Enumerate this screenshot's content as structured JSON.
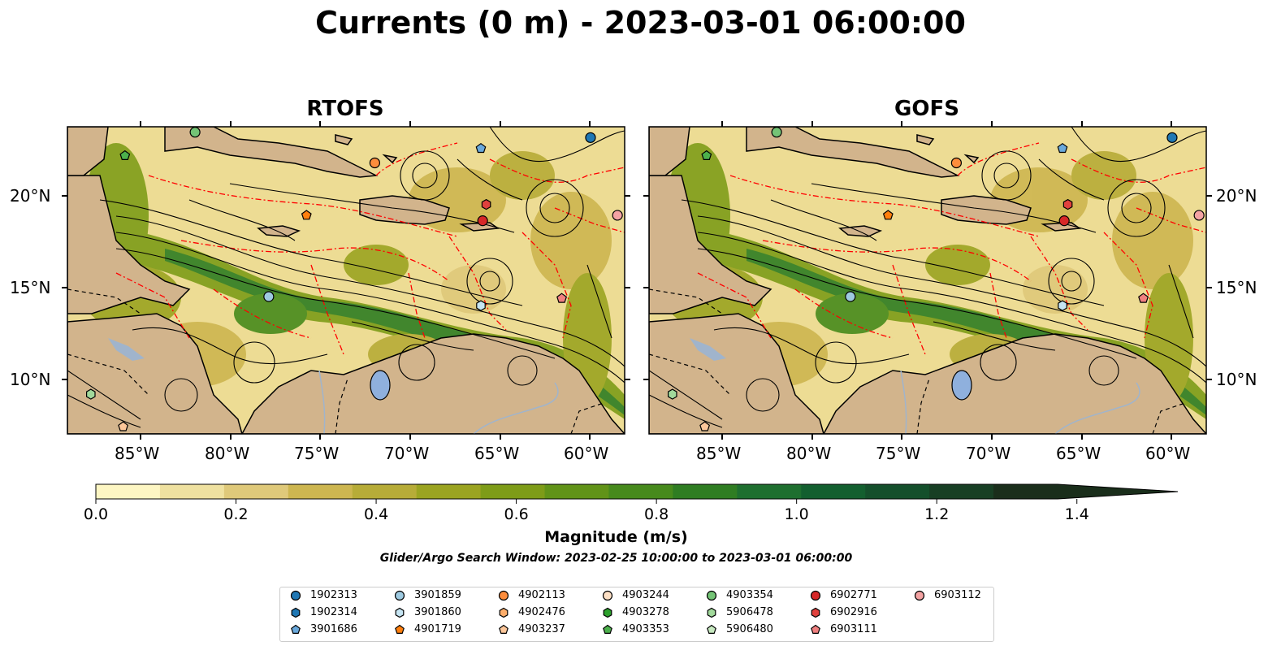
{
  "title": "Currents (0 m) - 2023-03-01 06:00:00",
  "panels": [
    {
      "title": "RTOFS"
    },
    {
      "title": "GOFS"
    }
  ],
  "map": {
    "lon_range": [
      -89,
      -58
    ],
    "lat_range": [
      7,
      24
    ],
    "lon_ticks": [
      "85°W",
      "80°W",
      "75°W",
      "70°W",
      "65°W",
      "60°W"
    ],
    "lat_ticks": [
      "20°N",
      "15°N",
      "10°N"
    ],
    "land_color": "#d2b48c",
    "ocean_colormap": "speed (yellow-green-dark green)",
    "boundaries_color": "#ff0000",
    "streamlines_color": "#000000"
  },
  "colorbar": {
    "label": "Magnitude (m/s)",
    "tick_labels": [
      "0.0",
      "0.2",
      "0.4",
      "0.6",
      "0.8",
      "1.0",
      "1.2",
      "1.4"
    ],
    "range": [
      0,
      1.5
    ],
    "extend": "max",
    "colors": [
      "#fdf6c3",
      "#efe1a0",
      "#dfc97a",
      "#cdb650",
      "#b7ac38",
      "#9ba421",
      "#7e9c18",
      "#619318",
      "#478a1c",
      "#2f7d22",
      "#1e6f2f",
      "#135f2f",
      "#144f2b",
      "#183f24",
      "#1a2e1b"
    ]
  },
  "search_window": "Glider/Argo Search Window: 2023-02-25 10:00:00 to 2023-03-01 06:00:00",
  "legend": {
    "items": [
      {
        "id": "1902313",
        "marker": "circle",
        "color": "#1f77b4"
      },
      {
        "id": "1902314",
        "marker": "hexagon",
        "color": "#1f77b4"
      },
      {
        "id": "3901686",
        "marker": "pentagon",
        "color": "#6aa9dc"
      },
      {
        "id": "3901859",
        "marker": "circle",
        "color": "#9ecae1"
      },
      {
        "id": "3901860",
        "marker": "hexagon",
        "color": "#c6e5f3"
      },
      {
        "id": "4901719",
        "marker": "pentagon",
        "color": "#ff7f0e"
      },
      {
        "id": "4902113",
        "marker": "circle",
        "color": "#fd8d3c"
      },
      {
        "id": "4902476",
        "marker": "hexagon",
        "color": "#fdae6b"
      },
      {
        "id": "4903237",
        "marker": "pentagon",
        "color": "#fdc79a"
      },
      {
        "id": "4903244",
        "marker": "circle",
        "color": "#fde0c5"
      },
      {
        "id": "4903278",
        "marker": "hexagon",
        "color": "#2ca02c"
      },
      {
        "id": "4903353",
        "marker": "pentagon",
        "color": "#4cb04c"
      },
      {
        "id": "4903354",
        "marker": "circle",
        "color": "#74c476"
      },
      {
        "id": "5906478",
        "marker": "hexagon",
        "color": "#a1d99b"
      },
      {
        "id": "5906480",
        "marker": "pentagon",
        "color": "#c7e9c0"
      },
      {
        "id": "6902771",
        "marker": "circle",
        "color": "#d62728"
      },
      {
        "id": "6902916",
        "marker": "hexagon",
        "color": "#e0413d"
      },
      {
        "id": "6903111",
        "marker": "pentagon",
        "color": "#f08080"
      },
      {
        "id": "6903112",
        "marker": "circle",
        "color": "#f4a3a3"
      }
    ]
  },
  "markers_on_map": [
    {
      "id": "4903353",
      "lon": -85.8,
      "lat": 22.4
    },
    {
      "id": "4903354",
      "lon": -81.9,
      "lat": 23.7
    },
    {
      "id": "1902313",
      "lon": -59.9,
      "lat": 23.4
    },
    {
      "id": "3901686",
      "lon": -66.0,
      "lat": 22.8
    },
    {
      "id": "4902113",
      "lon": -71.9,
      "lat": 22.0
    },
    {
      "id": "4901719",
      "lon": -75.7,
      "lat": 19.1
    },
    {
      "id": "6902916",
      "lon": -65.7,
      "lat": 19.7
    },
    {
      "id": "6902771",
      "lon": -65.9,
      "lat": 18.8
    },
    {
      "id": "6903112",
      "lon": -58.4,
      "lat": 19.1
    },
    {
      "id": "3901859",
      "lon": -77.8,
      "lat": 14.6
    },
    {
      "id": "3901860",
      "lon": -66.0,
      "lat": 14.1
    },
    {
      "id": "6903111",
      "lon": -61.5,
      "lat": 14.5
    },
    {
      "id": "5906478",
      "lon": -87.7,
      "lat": 9.2
    },
    {
      "id": "4903237",
      "lon": -85.9,
      "lat": 7.4
    }
  ]
}
